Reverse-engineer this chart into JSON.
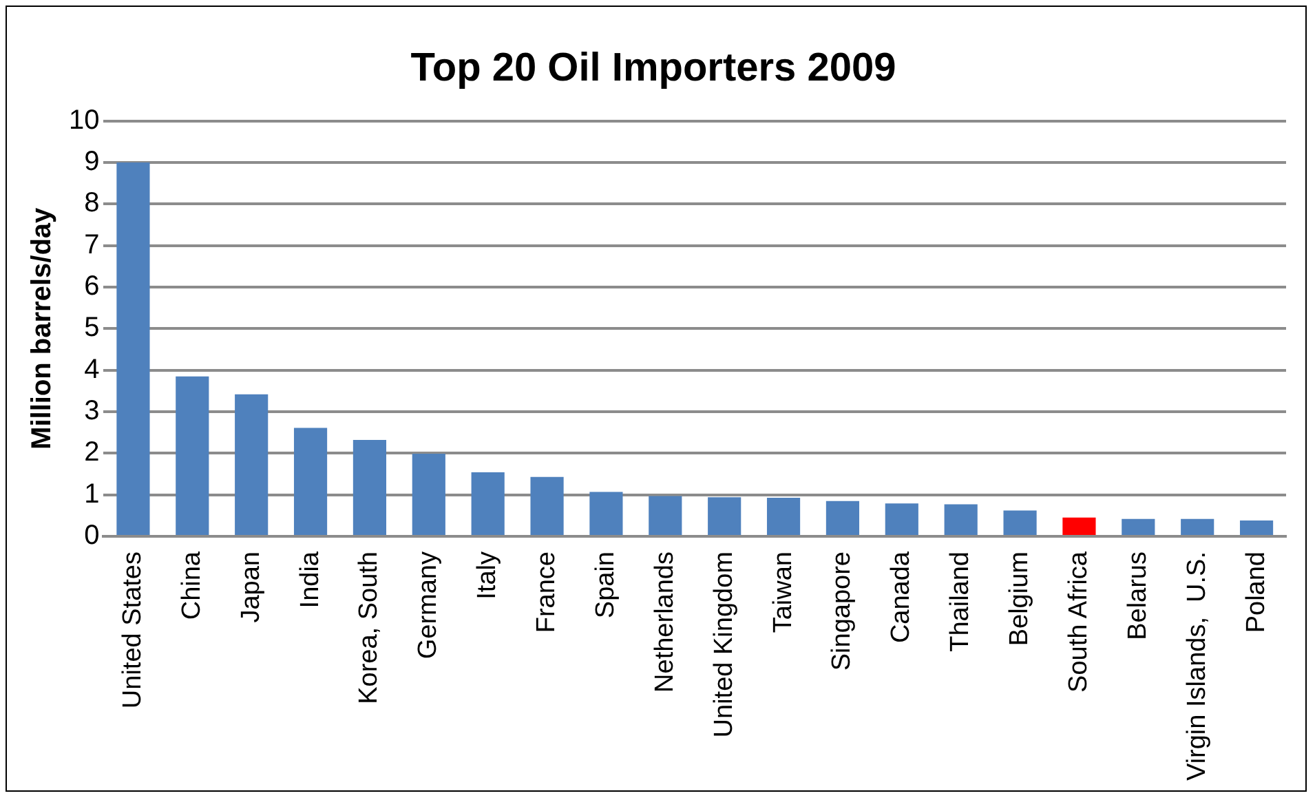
{
  "chart_data": {
    "type": "bar",
    "title": "Top 20 Oil Importers 2009",
    "ylabel": "Million barrels/day",
    "categories": [
      "United States",
      "China",
      "Japan",
      "India",
      "Korea, South",
      "Germany",
      "Italy",
      "France",
      "Spain",
      "Netherlands",
      "United Kingdom",
      "Taiwan",
      "Singapore",
      "Canada",
      "Thailand",
      "Belgium",
      "South Africa",
      "Belarus",
      "Virgin Islands,  U.S.",
      "Poland"
    ],
    "values": [
      9.0,
      3.85,
      3.42,
      2.61,
      2.32,
      1.99,
      1.54,
      1.43,
      1.07,
      0.97,
      0.94,
      0.93,
      0.85,
      0.79,
      0.77,
      0.62,
      0.45,
      0.42,
      0.42,
      0.38
    ],
    "colors": [
      "#4f81bd",
      "#4f81bd",
      "#4f81bd",
      "#4f81bd",
      "#4f81bd",
      "#4f81bd",
      "#4f81bd",
      "#4f81bd",
      "#4f81bd",
      "#4f81bd",
      "#4f81bd",
      "#4f81bd",
      "#4f81bd",
      "#4f81bd",
      "#4f81bd",
      "#4f81bd",
      "#ff0000",
      "#4f81bd",
      "#4f81bd",
      "#4f81bd"
    ],
    "ylim": [
      0,
      10
    ],
    "yticks": [
      0,
      1,
      2,
      3,
      4,
      5,
      6,
      7,
      8,
      9,
      10
    ],
    "grid": "y",
    "legend": false
  }
}
